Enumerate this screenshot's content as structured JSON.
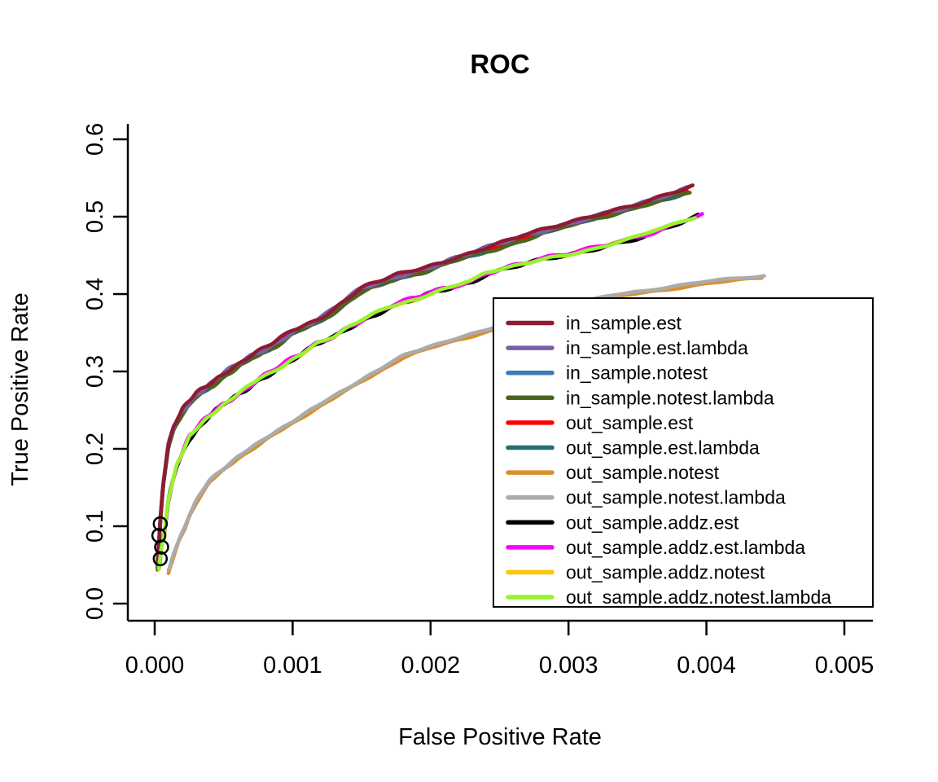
{
  "title": "ROC",
  "axes": {
    "x_label": "False Positive Rate",
    "y_label": "True Positive Rate",
    "x_ticks": [
      "0.000",
      "0.001",
      "0.002",
      "0.003",
      "0.004",
      "0.005"
    ],
    "y_ticks": [
      "0.0",
      "0.1",
      "0.2",
      "0.3",
      "0.4",
      "0.5",
      "0.6"
    ]
  },
  "legend": {
    "items": [
      {
        "label": "in_sample.est",
        "color": "#8E1B33"
      },
      {
        "label": "in_sample.est.lambda",
        "color": "#7A5FA8"
      },
      {
        "label": "in_sample.notest",
        "color": "#3D79B6"
      },
      {
        "label": "in_sample.notest.lambda",
        "color": "#49661E"
      },
      {
        "label": "out_sample.est",
        "color": "#FE0000"
      },
      {
        "label": "out_sample.est.lambda",
        "color": "#206E76"
      },
      {
        "label": "out_sample.notest",
        "color": "#D9902F"
      },
      {
        "label": "out_sample.notest.lambda",
        "color": "#ABABAB"
      },
      {
        "label": "out_sample.addz.est",
        "color": "#000000"
      },
      {
        "label": "out_sample.addz.est.lambda",
        "color": "#FB00FB"
      },
      {
        "label": "out_sample.addz.notest",
        "color": "#FFC40A"
      },
      {
        "label": "out_sample.addz.notest.lambda",
        "color": "#96F42D"
      }
    ]
  },
  "chart_data": {
    "type": "line",
    "title": "ROC",
    "xlabel": "False Positive Rate",
    "ylabel": "True Positive Rate",
    "xlim": [
      0,
      0.005
    ],
    "ylim": [
      0,
      0.6
    ],
    "x_tick_values": [
      0,
      0.001,
      0.002,
      0.003,
      0.004,
      0.005
    ],
    "y_tick_values": [
      0,
      0.1,
      0.2,
      0.3,
      0.4,
      0.5,
      0.6
    ],
    "grid": false,
    "legend_position": "bottom-right-inside",
    "clusters": {
      "top": [
        [
          2e-05,
          0.048
        ],
        [
          3e-05,
          0.075
        ],
        [
          4e-05,
          0.105
        ],
        [
          6e-05,
          0.15
        ],
        [
          0.0001,
          0.205
        ],
        [
          0.00014,
          0.228
        ],
        [
          0.0002,
          0.248
        ],
        [
          0.0003,
          0.268
        ],
        [
          0.0004,
          0.281
        ],
        [
          0.0005,
          0.295
        ],
        [
          0.0007,
          0.318
        ],
        [
          0.00085,
          0.332
        ],
        [
          0.001,
          0.35
        ],
        [
          0.00115,
          0.362
        ],
        [
          0.00125,
          0.372
        ],
        [
          0.0014,
          0.392
        ],
        [
          0.0015,
          0.405
        ],
        [
          0.00165,
          0.414
        ],
        [
          0.00175,
          0.421
        ],
        [
          0.002,
          0.434
        ],
        [
          0.00215,
          0.443
        ],
        [
          0.0023,
          0.451
        ],
        [
          0.0025,
          0.462
        ],
        [
          0.00275,
          0.476
        ],
        [
          0.003,
          0.49
        ],
        [
          0.00325,
          0.503
        ],
        [
          0.0035,
          0.513
        ],
        [
          0.00375,
          0.526
        ],
        [
          0.0039,
          0.536
        ]
      ],
      "middle": [
        [
          3e-05,
          0.046
        ],
        [
          5e-05,
          0.075
        ],
        [
          7e-05,
          0.09
        ],
        [
          0.0001,
          0.135
        ],
        [
          0.00016,
          0.18
        ],
        [
          0.00025,
          0.215
        ],
        [
          0.0004,
          0.243
        ],
        [
          0.0005,
          0.258
        ],
        [
          0.0006,
          0.27
        ],
        [
          0.00075,
          0.29
        ],
        [
          0.0009,
          0.305
        ],
        [
          0.00105,
          0.32
        ],
        [
          0.00117,
          0.335
        ],
        [
          0.0013,
          0.346
        ],
        [
          0.0014,
          0.358
        ],
        [
          0.00155,
          0.371
        ],
        [
          0.0017,
          0.383
        ],
        [
          0.0019,
          0.394
        ],
        [
          0.002,
          0.401
        ],
        [
          0.00215,
          0.409
        ],
        [
          0.0023,
          0.417
        ],
        [
          0.0024,
          0.428
        ],
        [
          0.0026,
          0.437
        ],
        [
          0.0028,
          0.444
        ],
        [
          0.003,
          0.45
        ],
        [
          0.00315,
          0.457
        ],
        [
          0.0033,
          0.465
        ],
        [
          0.00345,
          0.472
        ],
        [
          0.0036,
          0.48
        ],
        [
          0.0038,
          0.492
        ],
        [
          0.00397,
          0.503
        ]
      ],
      "bottom": [
        [
          0.0001,
          0.043
        ],
        [
          0.00014,
          0.065
        ],
        [
          0.00018,
          0.085
        ],
        [
          0.00022,
          0.1
        ],
        [
          0.00025,
          0.115
        ],
        [
          0.0003,
          0.133
        ],
        [
          0.0004,
          0.16
        ],
        [
          0.0005,
          0.175
        ],
        [
          0.0006,
          0.19
        ],
        [
          0.00075,
          0.207
        ],
        [
          0.0009,
          0.225
        ],
        [
          0.0011,
          0.247
        ],
        [
          0.0013,
          0.268
        ],
        [
          0.0015,
          0.29
        ],
        [
          0.0017,
          0.31
        ],
        [
          0.0018,
          0.32
        ],
        [
          0.002,
          0.333
        ],
        [
          0.0022,
          0.344
        ],
        [
          0.0024,
          0.353
        ],
        [
          0.0027,
          0.37
        ],
        [
          0.003,
          0.385
        ],
        [
          0.0033,
          0.398
        ],
        [
          0.0036,
          0.406
        ],
        [
          0.004,
          0.416
        ],
        [
          0.0042,
          0.42
        ],
        [
          0.00442,
          0.424
        ]
      ]
    },
    "series": [
      {
        "name": "in_sample.notest",
        "color": "#3D79B6",
        "cluster": "top",
        "dy": -1,
        "amp": 1.5,
        "ph": 0.0,
        "x_end": 0.00385
      },
      {
        "name": "out_sample.est.lambda",
        "color": "#206E76",
        "cluster": "top",
        "dy": 1.5,
        "amp": 1.5,
        "ph": 2.0,
        "x_end": 0.00385
      },
      {
        "name": "out_sample.est",
        "color": "#FE0000",
        "cluster": "top",
        "dy": 0,
        "amp": 1.6,
        "ph": 4.0,
        "x_end": 0.00386
      },
      {
        "name": "in_sample.notest.lambda",
        "color": "#49661E",
        "cluster": "top",
        "dy": 2,
        "amp": 2.5,
        "ph": 1.1,
        "x_end": 0.00388
      },
      {
        "name": "in_sample.est.lambda",
        "color": "#7A5FA8",
        "cluster": "top",
        "dy": -2,
        "amp": 3.0,
        "ph": 3.3,
        "f1": 0.18,
        "x_end": 0.00397
      },
      {
        "name": "in_sample.est",
        "color": "#8E1B33",
        "cluster": "top",
        "dy": -3,
        "amp": 2.5,
        "ph": 5.1,
        "f1": 0.21,
        "x_end": 0.00393
      },
      {
        "name": "out_sample.addz.notest",
        "color": "#FFC40A",
        "cluster": "middle",
        "dy": 0.5,
        "amp": 1.5,
        "ph": 0.5,
        "x_end": 0.0037
      },
      {
        "name": "out_sample.addz.est",
        "color": "#000000",
        "cluster": "middle",
        "dy": 1,
        "amp": 3.2,
        "ph": 2.6,
        "f1": 0.22,
        "x_end": 0.00394
      },
      {
        "name": "out_sample.addz.est.lambda",
        "color": "#FB00FB",
        "cluster": "middle",
        "dy": -0.5,
        "amp": 3.4,
        "ph": 4.9,
        "f1": 0.2,
        "x_end": 0.00397
      },
      {
        "name": "out_sample.addz.notest.lambda",
        "color": "#96F42D",
        "cluster": "middle",
        "dy": 0,
        "amp": 1.8,
        "ph": 1.4,
        "x_end": 0.00392
      },
      {
        "name": "out_sample.notest",
        "color": "#D9902F",
        "cluster": "bottom",
        "dy": 2.5,
        "amp": 1.2,
        "ph": 0.8,
        "x_end": 0.0044
      },
      {
        "name": "out_sample.notest.lambda",
        "color": "#ABABAB",
        "cluster": "bottom",
        "dy": 0,
        "amp": 1.2,
        "ph": 2.2,
        "x_end": 0.00442
      }
    ],
    "start_markers": [
      [
        4e-05,
        0.103
      ],
      [
        3e-05,
        0.088
      ],
      [
        5e-05,
        0.073
      ],
      [
        4e-05,
        0.058
      ]
    ]
  }
}
